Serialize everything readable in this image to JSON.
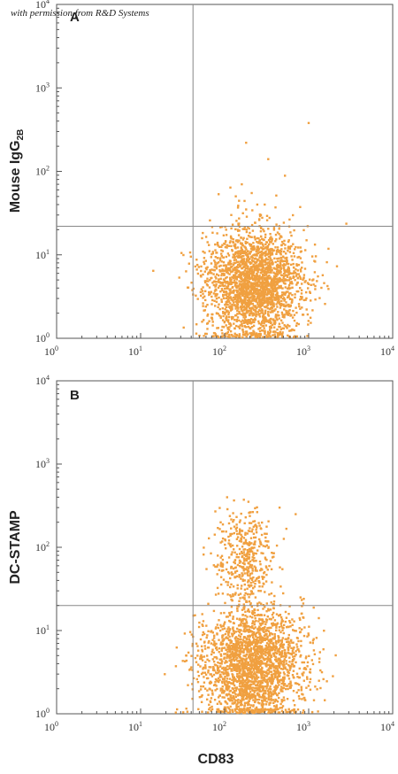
{
  "watermark": "with permission from R&D Systems",
  "chart_data": [
    {
      "type": "scatter",
      "panel_label": "A",
      "ylabel": "Mouse IgG",
      "ylabel_sub": "2B",
      "xlabel": "",
      "xscale": "log",
      "yscale": "log",
      "xlim": [
        1,
        10000
      ],
      "ylim": [
        1,
        10000
      ],
      "x_ticks": [
        "10^0",
        "10^1",
        "10^2",
        "10^3",
        "10^4"
      ],
      "y_ticks": [
        "10^0",
        "10^1",
        "10^2",
        "10^3",
        "10^4"
      ],
      "quadrant_gate": {
        "x": 42,
        "y": 22
      },
      "point_color": "#f0a040",
      "populations": [
        {
          "name": "",
          "center": [
            230,
            4.5
          ],
          "spread_log": [
            0.3,
            0.33
          ],
          "count": 2400
        }
      ],
      "outliers": [
        [
          1000,
          380
        ],
        [
          180,
          220
        ],
        [
          330,
          140
        ],
        [
          160,
          70
        ],
        [
          210,
          55
        ],
        [
          300,
          40
        ],
        [
          270,
          30
        ],
        [
          180,
          35
        ],
        [
          120,
          30
        ]
      ]
    },
    {
      "type": "scatter",
      "panel_label": "B",
      "ylabel": "DC-STAMP",
      "ylabel_sub": "",
      "xlabel": "CD83",
      "xscale": "log",
      "yscale": "log",
      "xlim": [
        1,
        10000
      ],
      "ylim": [
        1,
        10000
      ],
      "x_ticks": [
        "10^0",
        "10^1",
        "10^2",
        "10^3",
        "10^4"
      ],
      "y_ticks": [
        "10^0",
        "10^1",
        "10^2",
        "10^3",
        "10^4"
      ],
      "quadrant_gate": {
        "x": 42,
        "y": 20
      },
      "point_color": "#f0a040",
      "populations": [
        {
          "name": "",
          "center": [
            220,
            3.8
          ],
          "spread_log": [
            0.3,
            0.35
          ],
          "count": 2300
        },
        {
          "name": "",
          "center": [
            170,
            80
          ],
          "spread_log": [
            0.18,
            0.3
          ],
          "count": 420
        }
      ],
      "outliers": [
        [
          700,
          250
        ],
        [
          800,
          25
        ],
        [
          35,
          5
        ],
        [
          450,
          300
        ]
      ]
    }
  ]
}
